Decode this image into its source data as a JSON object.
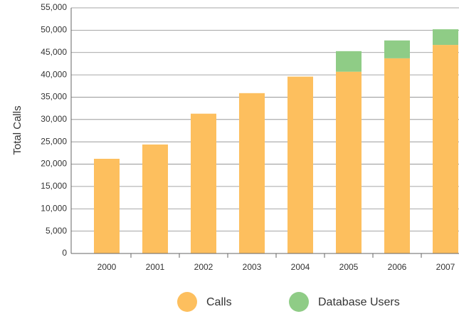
{
  "chart_data": {
    "type": "stacked_bar",
    "categories": [
      "2000",
      "2001",
      "2002",
      "2003",
      "2004",
      "2005",
      "2006",
      "2007"
    ],
    "series": [
      {
        "name": "Calls",
        "color": "#fdbf5e",
        "values": [
          21200,
          24400,
          31300,
          35900,
          39600,
          40700,
          43700,
          46700
        ]
      },
      {
        "name": "Database Users",
        "color": "#8fcc86",
        "values": [
          0,
          0,
          0,
          0,
          0,
          4600,
          4000,
          3500
        ]
      }
    ],
    "y_label": "Total Calls",
    "ylim": [
      0,
      55000
    ],
    "yticks": [
      0,
      {
        "value": 5000,
        "label": "5,000"
      },
      {
        "value": 10000,
        "label": "10,000"
      },
      {
        "value": 15000,
        "label": "15,000"
      },
      {
        "value": 20000,
        "label": "20,000"
      },
      {
        "value": 25000,
        "label": "25,000"
      },
      {
        "value": 30000,
        "label": "30,000"
      },
      {
        "value": 35000,
        "label": "35,000"
      },
      {
        "value": 40000,
        "label": "40,000"
      },
      {
        "value": 45000,
        "label": "45,000"
      },
      {
        "value": 50000,
        "label": "50,000"
      },
      {
        "value": 55000,
        "label": "55,000"
      }
    ],
    "grid": true,
    "legend": "bottom"
  }
}
